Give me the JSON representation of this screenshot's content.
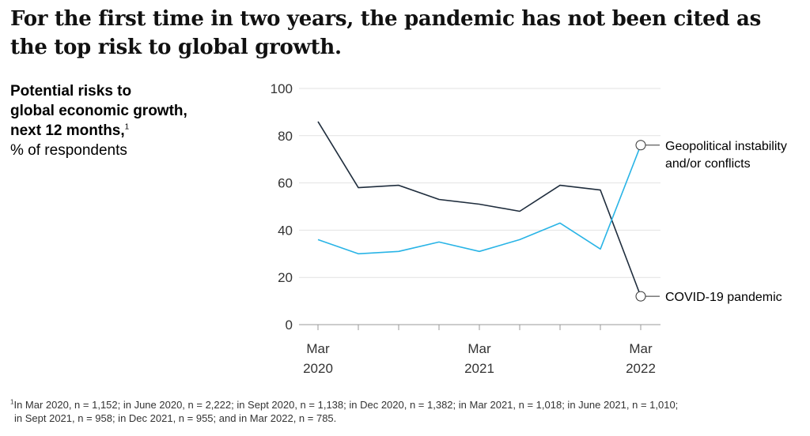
{
  "headline": "For the first time in two years, the pandemic has not been cited as the top risk to global growth.",
  "subtitle": {
    "line1": "Potential risks to",
    "line2": "global economic growth,",
    "line3": "next 12 months,",
    "marker": "1",
    "unit": "% of respondents"
  },
  "chart_data": {
    "type": "line",
    "x": [
      "Mar 2020",
      "June 2020",
      "Sept 2020",
      "Dec 2020",
      "Mar 2021",
      "June 2021",
      "Sept 2021",
      "Dec 2021",
      "Mar 2022"
    ],
    "series": [
      {
        "name": "COVID-19 pandemic",
        "values": [
          86,
          58,
          59,
          53,
          51,
          48,
          59,
          57,
          12
        ],
        "color": "#1f2d3d"
      },
      {
        "name": "Geopolitical instability and/or conflicts",
        "values": [
          36,
          30,
          31,
          35,
          31,
          36,
          43,
          32,
          76
        ],
        "color": "#29b4e6"
      }
    ],
    "ylim": [
      0,
      100
    ],
    "yticks": [
      "0",
      "20",
      "40",
      "60",
      "80",
      "100"
    ],
    "xticks": [
      {
        "index": 0,
        "month": "Mar",
        "year": "2020"
      },
      {
        "index": 4,
        "month": "Mar",
        "year": "2021"
      },
      {
        "index": 8,
        "month": "Mar",
        "year": "2022"
      }
    ],
    "end_labels": {
      "covid": [
        "COVID-19 pandemic"
      ],
      "geo": [
        "Geopolitical instability",
        "and/or conflicts"
      ]
    },
    "grid": true
  },
  "footnote": {
    "marker": "1",
    "line1": "In Mar 2020, n = 1,152; in June 2020, n = 2,222; in Sept 2020, n = 1,138; in Dec 2020, n = 1,382; in Mar 2021, n = 1,018; in June 2021, n = 1,010;",
    "line2": "in Sept 2021, n = 958; in Dec 2021, n = 955; and in Mar 2022, n = 785."
  }
}
